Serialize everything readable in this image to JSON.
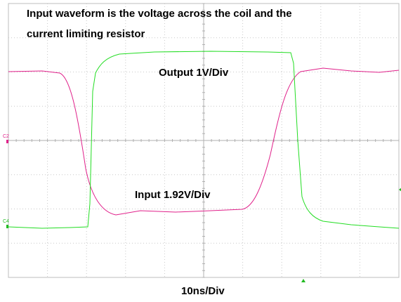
{
  "title_lines": [
    "Input waveform is the voltage across the coil and the",
    "current limiting resistor"
  ],
  "traces": [
    {
      "label": "Output 1V/Div",
      "channel": "C4"
    },
    {
      "label": "Input 1.92V/Div",
      "channel": "C2"
    }
  ],
  "timebase": "10ns/Div"
}
